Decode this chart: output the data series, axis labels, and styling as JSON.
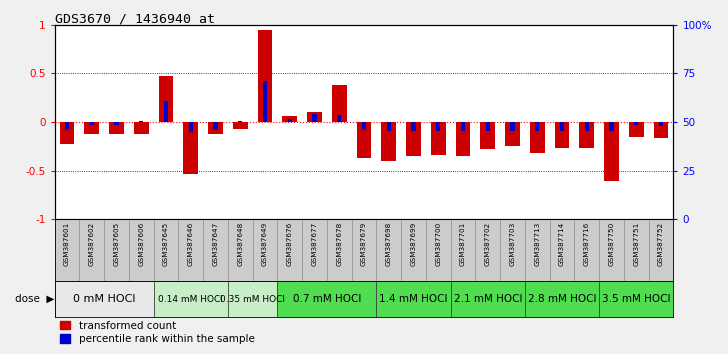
{
  "title": "GDS3670 / 1436940_at",
  "samples": [
    "GSM387601",
    "GSM387602",
    "GSM387605",
    "GSM387606",
    "GSM387645",
    "GSM387646",
    "GSM387647",
    "GSM387648",
    "GSM387649",
    "GSM387676",
    "GSM387677",
    "GSM387678",
    "GSM387679",
    "GSM387698",
    "GSM387699",
    "GSM387700",
    "GSM387701",
    "GSM387702",
    "GSM387703",
    "GSM387713",
    "GSM387714",
    "GSM387716",
    "GSM387750",
    "GSM387751",
    "GSM387752"
  ],
  "red_values": [
    -0.22,
    -0.12,
    -0.12,
    -0.12,
    0.47,
    -0.53,
    -0.12,
    -0.07,
    0.95,
    0.06,
    0.1,
    0.38,
    -0.37,
    -0.4,
    -0.35,
    -0.34,
    -0.35,
    -0.28,
    -0.25,
    -0.32,
    -0.27,
    -0.27,
    -0.6,
    -0.15,
    -0.16
  ],
  "blue_values": [
    -0.085,
    -0.03,
    -0.03,
    0.015,
    0.22,
    -0.1,
    -0.085,
    0.01,
    0.42,
    0.035,
    0.085,
    0.07,
    -0.08,
    -0.09,
    -0.09,
    -0.09,
    -0.09,
    -0.09,
    -0.09,
    -0.09,
    -0.09,
    -0.09,
    -0.09,
    -0.03,
    -0.04
  ],
  "dose_groups": [
    {
      "label": "0 mM HOCl",
      "start": 0,
      "end": 4,
      "color": "#e8e8e8",
      "fontsize": 8
    },
    {
      "label": "0.14 mM HOCl",
      "start": 4,
      "end": 7,
      "color": "#c8eec8",
      "fontsize": 6.5
    },
    {
      "label": "0.35 mM HOCl",
      "start": 7,
      "end": 9,
      "color": "#c8eec8",
      "fontsize": 6.5
    },
    {
      "label": "0.7 mM HOCl",
      "start": 9,
      "end": 13,
      "color": "#50dd50",
      "fontsize": 7.5
    },
    {
      "label": "1.4 mM HOCl",
      "start": 13,
      "end": 16,
      "color": "#50dd50",
      "fontsize": 7.5
    },
    {
      "label": "2.1 mM HOCl",
      "start": 16,
      "end": 19,
      "color": "#50dd50",
      "fontsize": 7.5
    },
    {
      "label": "2.8 mM HOCl",
      "start": 19,
      "end": 22,
      "color": "#50dd50",
      "fontsize": 7.5
    },
    {
      "label": "3.5 mM HOCl",
      "start": 22,
      "end": 25,
      "color": "#50dd50",
      "fontsize": 7.5
    }
  ],
  "ylim": [
    -1.0,
    1.0
  ],
  "yticks_left": [
    -1,
    -0.5,
    0,
    0.5,
    1
  ],
  "red_color": "#cc0000",
  "blue_color": "#0000cc",
  "bar_width": 0.6,
  "bg_color": "#f0f0f0",
  "plot_bg": "#ffffff",
  "label_area_color": "#cccccc",
  "label_sep_color": "#aaaaaa"
}
